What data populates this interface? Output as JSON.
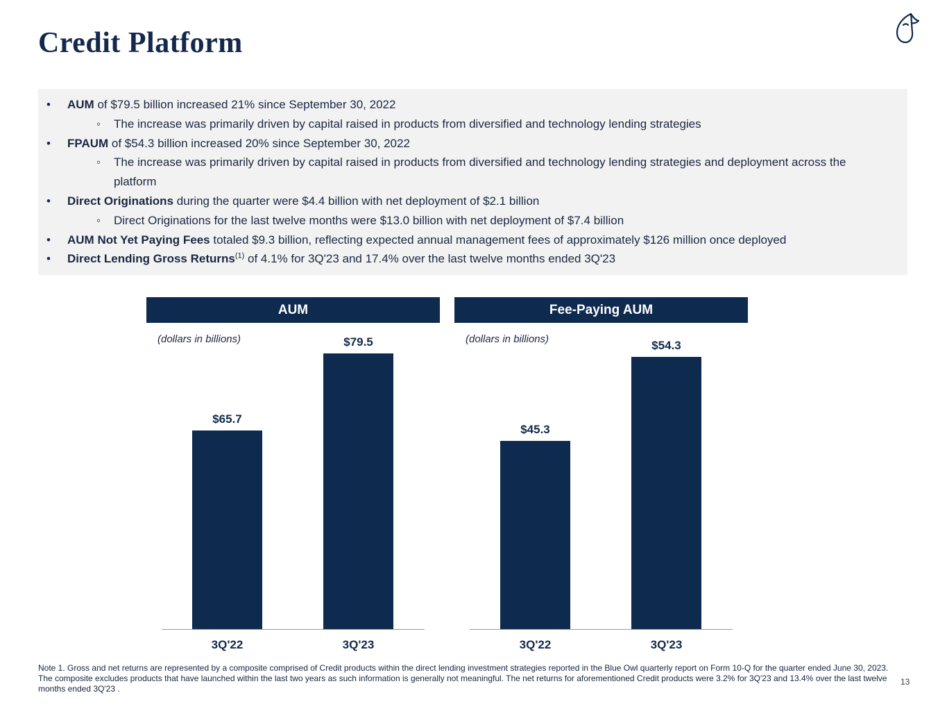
{
  "page": {
    "title": "Credit Platform",
    "page_number": "13",
    "footnote": "Note 1. Gross and net returns are represented by a composite comprised of Credit products within the direct lending investment strategies reported in the Blue Owl quarterly report on Form 10-Q for the quarter ended June 30, 2023. The composite excludes products that have launched within the last two years as such information is generally not meaningful. The net returns for aforementioned Credit products were 3.2% for 3Q'23 and 13.4% over the last twelve months ended 3Q'23 ."
  },
  "colors": {
    "navy": "#0E2A4E",
    "box_background": "#F2F2F2",
    "body_text": "#1A2742",
    "axis_line": "#9A9A9A"
  },
  "icons": {
    "logo": "blue-owl-logo"
  },
  "bullets": {
    "items": [
      {
        "level": 1,
        "bold": "AUM",
        "text": " of $79.5 billion increased 21% since September 30, 2022"
      },
      {
        "level": 2,
        "text": "The increase was primarily driven by capital raised in products from diversified and technology lending strategies"
      },
      {
        "level": 1,
        "bold": "FPAUM",
        "text": " of $54.3 billion increased 20% since September 30, 2022"
      },
      {
        "level": 2,
        "text": "The increase was primarily driven by capital raised in products from diversified and technology lending strategies and deployment across the platform"
      },
      {
        "level": 1,
        "bold": "Direct Originations",
        "text": " during the quarter were $4.4 billion with net deployment of $2.1 billion"
      },
      {
        "level": 2,
        "text": "Direct Originations for the last twelve months were $13.0 billion with net deployment of $7.4 billion"
      },
      {
        "level": 1,
        "bold": "AUM Not Yet Paying Fees",
        "text": " totaled $9.3 billion, reflecting expected annual management fees of approximately $126 million once deployed"
      },
      {
        "level": 1,
        "bold": "Direct Lending Gross Returns",
        "sup": "(1)",
        "text": " of 4.1% for 3Q'23 and 17.4% over the last twelve months ended 3Q'23"
      }
    ]
  },
  "chart_data": [
    {
      "type": "bar",
      "title": "AUM",
      "subtitle": "(dollars in billions)",
      "categories": [
        "3Q'22",
        "3Q'23"
      ],
      "values": [
        65.7,
        79.5
      ],
      "value_labels": [
        "$65.7",
        "$79.5"
      ],
      "ylim": [
        30,
        85
      ],
      "grid": false,
      "legend": false,
      "bar_color": "#0E2A4E"
    },
    {
      "type": "bar",
      "title": "Fee-Paying AUM",
      "subtitle": "(dollars in billions)",
      "categories": [
        "3Q'22",
        "3Q'23"
      ],
      "values": [
        45.3,
        54.3
      ],
      "value_labels": [
        "$45.3",
        "$54.3"
      ],
      "ylim": [
        25,
        58
      ],
      "grid": false,
      "legend": false,
      "bar_color": "#0E2A4E"
    }
  ]
}
